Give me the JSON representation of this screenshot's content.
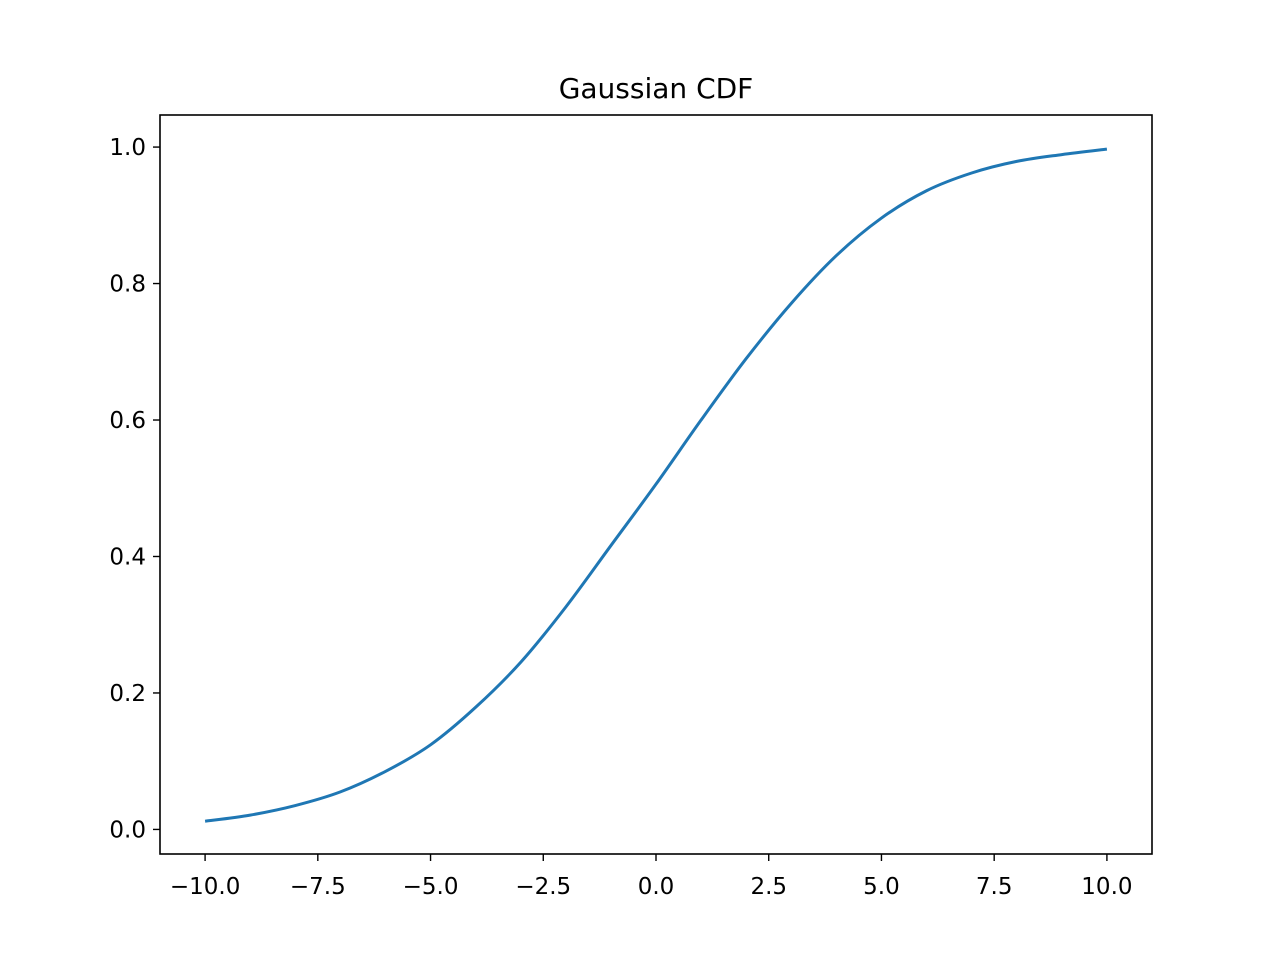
{
  "chart_data": {
    "type": "line",
    "title": "Gaussian CDF",
    "xlabel": "",
    "ylabel": "",
    "xlim": [
      -11.0,
      11.0
    ],
    "ylim": [
      -0.036,
      1.047
    ],
    "grid": false,
    "legend": "none",
    "x_ticks": [
      -10.0,
      -7.5,
      -5.0,
      -2.5,
      0.0,
      2.5,
      5.0,
      7.5,
      10.0
    ],
    "x_tick_labels": [
      "−10.0",
      "−7.5",
      "−5.0",
      "−2.5",
      "0.0",
      "2.5",
      "5.0",
      "7.5",
      "10.0"
    ],
    "y_ticks": [
      0.0,
      0.2,
      0.4,
      0.6,
      0.8,
      1.0
    ],
    "y_tick_labels": [
      "0.0",
      "0.2",
      "0.4",
      "0.6",
      "0.8",
      "1.0"
    ],
    "series": [
      {
        "color": "#1f77b4",
        "x": [
          -10.0,
          -9.0,
          -8.0,
          -7.0,
          -6.0,
          -5.0,
          -4.0,
          -3.0,
          -2.0,
          -1.0,
          0.0,
          1.0,
          2.0,
          3.0,
          4.0,
          5.0,
          6.0,
          7.0,
          8.0,
          9.0,
          10.0
        ],
        "y": [
          0.012,
          0.021,
          0.035,
          0.055,
          0.085,
          0.124,
          0.179,
          0.245,
          0.326,
          0.416,
          0.506,
          0.6,
          0.69,
          0.771,
          0.841,
          0.896,
          0.936,
          0.962,
          0.979,
          0.989,
          0.997
        ]
      }
    ]
  }
}
